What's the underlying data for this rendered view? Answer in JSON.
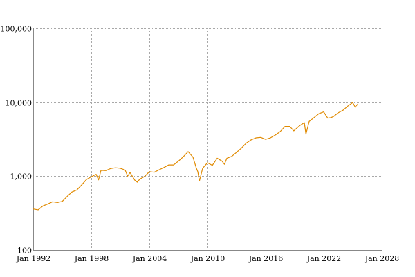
{
  "chart_data": {
    "type": "line",
    "title": "",
    "xlabel": "",
    "ylabel": "",
    "scale_y": "log",
    "grid": true,
    "legend": "none",
    "xlim": [
      "1992-01-01",
      "2028-01-01"
    ],
    "ylim": [
      100,
      100000
    ],
    "x_ticks": [
      "Jan 1992",
      "Jan 1998",
      "Jan 2004",
      "Jan 2010",
      "Jan 2016",
      "Jan 2022",
      "Jan 2028"
    ],
    "y_ticks": [
      {
        "value": 100,
        "label": "100"
      },
      {
        "value": 1000,
        "label": "1,000"
      },
      {
        "value": 10000,
        "label": "10,000"
      },
      {
        "value": 100000,
        "label": "100,000"
      }
    ],
    "series": [
      {
        "color": "#e08a00",
        "x": [
          "1992-01",
          "1992-07",
          "1993-01",
          "1993-07",
          "1994-01",
          "1994-07",
          "1995-01",
          "1995-07",
          "1996-01",
          "1996-07",
          "1997-01",
          "1997-07",
          "1998-01",
          "1998-07",
          "1998-10",
          "1999-01",
          "1999-07",
          "2000-01",
          "2000-07",
          "2001-01",
          "2001-07",
          "2001-10",
          "2002-01",
          "2002-07",
          "2002-10",
          "2003-01",
          "2003-07",
          "2004-01",
          "2004-07",
          "2005-01",
          "2005-07",
          "2006-01",
          "2006-07",
          "2007-01",
          "2007-07",
          "2008-01",
          "2008-07",
          "2008-11",
          "2009-01",
          "2009-03",
          "2009-07",
          "2010-01",
          "2010-07",
          "2011-01",
          "2011-07",
          "2011-10",
          "2012-01",
          "2012-07",
          "2013-01",
          "2013-07",
          "2014-01",
          "2014-07",
          "2015-01",
          "2015-07",
          "2016-01",
          "2016-07",
          "2017-01",
          "2017-07",
          "2018-01",
          "2018-07",
          "2018-12",
          "2019-01",
          "2019-07",
          "2020-01",
          "2020-03",
          "2020-07",
          "2021-01",
          "2021-07",
          "2022-01",
          "2022-06",
          "2022-10",
          "2023-01",
          "2023-07",
          "2024-01",
          "2024-07",
          "2025-01",
          "2025-04",
          "2025-07"
        ],
        "values": [
          360,
          350,
          395,
          420,
          450,
          440,
          455,
          530,
          610,
          650,
          760,
          900,
          980,
          1060,
          890,
          1200,
          1190,
          1270,
          1300,
          1280,
          1210,
          1000,
          1120,
          880,
          830,
          910,
          990,
          1150,
          1130,
          1220,
          1310,
          1420,
          1420,
          1600,
          1830,
          2150,
          1810,
          1300,
          1150,
          860,
          1280,
          1520,
          1400,
          1750,
          1600,
          1450,
          1750,
          1850,
          2100,
          2400,
          2800,
          3100,
          3300,
          3350,
          3150,
          3300,
          3600,
          4000,
          4700,
          4700,
          4100,
          4200,
          4800,
          5300,
          3700,
          5500,
          6200,
          7000,
          7400,
          6100,
          6200,
          6400,
          7200,
          7800,
          8900,
          9900,
          8600,
          9400
        ]
      }
    ]
  }
}
